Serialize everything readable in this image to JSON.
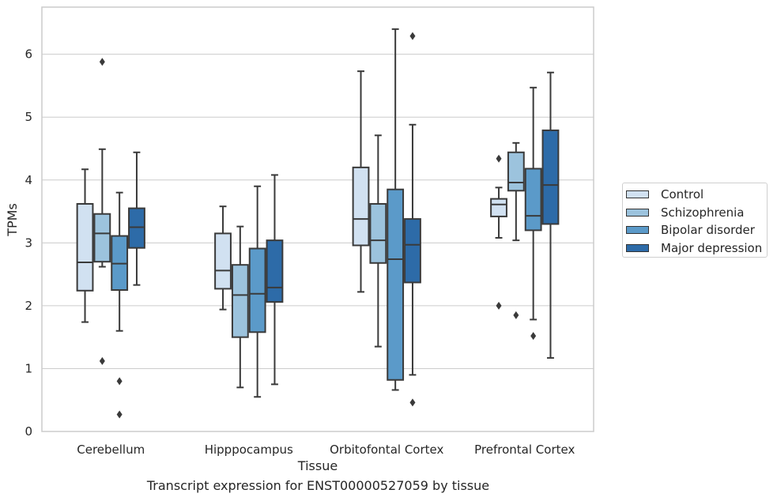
{
  "chart_data": {
    "type": "box",
    "xlabel": "Tissue",
    "ylabel": "TPMs",
    "caption": "Transcript expression for ENST00000527059 by tissue",
    "ylim": [
      0,
      6.75
    ],
    "yticks": [
      0,
      1,
      2,
      3,
      4,
      5,
      6
    ],
    "grid": true,
    "legend_position": "right",
    "categories": [
      "Cerebellum",
      "Hipppocampus",
      "Orbitofontal Cortex",
      "Prefrontal Cortex"
    ],
    "series": [
      {
        "name": "Control",
        "color": "#d1e1f1",
        "boxes": [
          {
            "whislo": 1.74,
            "q1": 2.24,
            "med": 2.69,
            "q3": 3.62,
            "whishi": 4.17,
            "fliers": []
          },
          {
            "whislo": 1.94,
            "q1": 2.27,
            "med": 2.56,
            "q3": 3.15,
            "whishi": 3.58,
            "fliers": []
          },
          {
            "whislo": 2.22,
            "q1": 2.96,
            "med": 3.38,
            "q3": 4.2,
            "whishi": 5.73,
            "fliers": []
          },
          {
            "whislo": 3.08,
            "q1": 3.42,
            "med": 3.61,
            "q3": 3.7,
            "whishi": 3.88,
            "fliers": [
              4.34,
              2.0
            ]
          }
        ]
      },
      {
        "name": "Schizophrenia",
        "color": "#9cc3dd",
        "boxes": [
          {
            "whislo": 2.62,
            "q1": 2.7,
            "med": 3.15,
            "q3": 3.46,
            "whishi": 4.49,
            "fliers": [
              5.88,
              1.12
            ]
          },
          {
            "whislo": 0.7,
            "q1": 1.5,
            "med": 2.17,
            "q3": 2.65,
            "whishi": 3.26,
            "fliers": []
          },
          {
            "whislo": 1.35,
            "q1": 2.68,
            "med": 3.04,
            "q3": 3.62,
            "whishi": 4.71,
            "fliers": []
          },
          {
            "whislo": 3.04,
            "q1": 3.83,
            "med": 3.96,
            "q3": 4.44,
            "whishi": 4.59,
            "fliers": [
              1.85
            ]
          }
        ]
      },
      {
        "name": "Bipolar disorder",
        "color": "#5b9ac9",
        "boxes": [
          {
            "whislo": 1.6,
            "q1": 2.25,
            "med": 2.67,
            "q3": 3.11,
            "whishi": 3.8,
            "fliers": [
              0.8,
              0.27
            ]
          },
          {
            "whislo": 0.55,
            "q1": 1.58,
            "med": 2.19,
            "q3": 2.91,
            "whishi": 3.9,
            "fliers": []
          },
          {
            "whislo": 0.66,
            "q1": 0.82,
            "med": 2.74,
            "q3": 3.85,
            "whishi": 6.4,
            "fliers": []
          },
          {
            "whislo": 1.78,
            "q1": 3.2,
            "med": 3.43,
            "q3": 4.18,
            "whishi": 5.47,
            "fliers": [
              1.52
            ]
          }
        ]
      },
      {
        "name": "Major depression",
        "color": "#2d6ba8",
        "boxes": [
          {
            "whislo": 2.33,
            "q1": 2.92,
            "med": 3.25,
            "q3": 3.55,
            "whishi": 4.44,
            "fliers": []
          },
          {
            "whislo": 0.75,
            "q1": 2.06,
            "med": 2.29,
            "q3": 3.04,
            "whishi": 4.08,
            "fliers": []
          },
          {
            "whislo": 0.9,
            "q1": 2.37,
            "med": 2.97,
            "q3": 3.38,
            "whishi": 4.88,
            "fliers": [
              6.29,
              0.46
            ]
          },
          {
            "whislo": 1.17,
            "q1": 3.3,
            "med": 3.92,
            "q3": 4.79,
            "whishi": 5.71,
            "fliers": []
          }
        ]
      }
    ]
  }
}
